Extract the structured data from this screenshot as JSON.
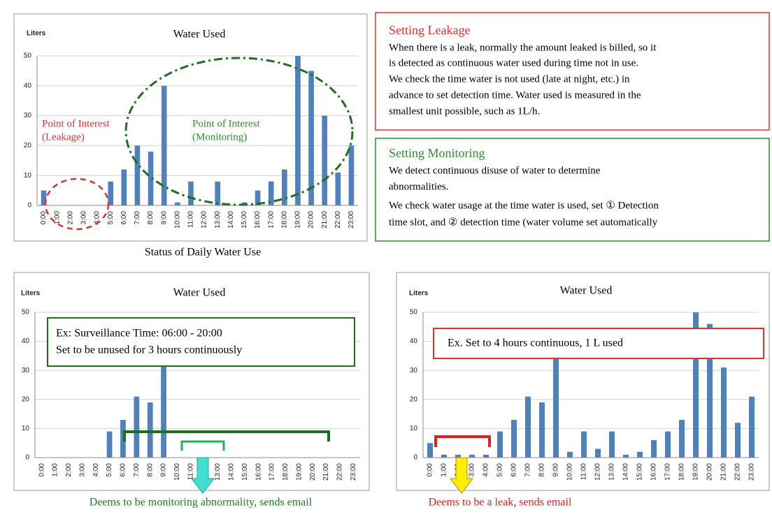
{
  "chart_data": [
    {
      "type": "bar",
      "title": "Water Used",
      "y_label": "Liters",
      "color": "#4f81bd",
      "categories": [
        "0:00",
        "1:00",
        "2:00",
        "3:00",
        "4:00",
        "5:00",
        "6:00",
        "7:00",
        "8:00",
        "9:00",
        "10:00",
        "11:00",
        "12:00",
        "13:00",
        "14:00",
        "15:00",
        "16:00",
        "17:00",
        "18:00",
        "19:00",
        "20:00",
        "21:00",
        "22:00",
        "23:00"
      ],
      "values": [
        5,
        0,
        0,
        0,
        0,
        8,
        12,
        20,
        18,
        40,
        1,
        8,
        0,
        8,
        0,
        1,
        5,
        8,
        12,
        50,
        45,
        30,
        11,
        20
      ],
      "ylim": [
        0,
        50
      ],
      "yticks": [
        0,
        10,
        20,
        30,
        40,
        50
      ],
      "grid": true,
      "annotations": [
        {
          "lines": [
            "Point of Interest",
            "(Leakage)"
          ],
          "color": "#e03030"
        },
        {
          "lines": [
            "Point of Interest",
            "(Monitoring)"
          ],
          "color": "#2e8b2e"
        }
      ],
      "caption": "Status of Daily Water Use"
    },
    {
      "type": "bar",
      "title": "Water Used",
      "y_label": "Liters",
      "color": "#4f81bd",
      "categories": [
        "0:00",
        "1:00",
        "2:00",
        "3:00",
        "4:00",
        "5:00",
        "6:00",
        "7:00",
        "8:00",
        "9:00",
        "10:00",
        "11:00",
        "12:00",
        "13:00",
        "14:00",
        "15:00",
        "16:00",
        "17:00",
        "18:00",
        "19:00",
        "20:00",
        "21:00",
        "22:00",
        "23:00"
      ],
      "values": [
        0,
        0,
        0,
        0,
        0,
        9,
        13,
        21,
        19,
        40,
        0,
        0,
        0,
        0,
        0,
        0,
        0,
        0,
        0,
        0,
        0,
        0,
        0,
        0
      ],
      "ylim": [
        0,
        50
      ],
      "yticks": [
        0,
        10,
        20,
        30,
        40,
        50
      ],
      "grid": true,
      "note_lines": [
        "Ex: Surveillance Time: 06:00 - 20:00",
        "Set to be unused for 3 hours continuously"
      ],
      "caption": "Deems to be monitoring abnormality, sends email"
    },
    {
      "type": "bar",
      "title": "Water Used",
      "y_label": "Liters",
      "color": "#4f81bd",
      "categories": [
        "0:00",
        "1:00",
        "2:00",
        "3:00",
        "4:00",
        "5:00",
        "6:00",
        "7:00",
        "8:00",
        "9:00",
        "10:00",
        "11:00",
        "12:00",
        "13:00",
        "14:00",
        "15:00",
        "16:00",
        "17:00",
        "18:00",
        "19:00",
        "20:00",
        "21:00",
        "22:00",
        "23:00"
      ],
      "values": [
        5,
        1,
        1,
        1,
        1,
        9,
        13,
        21,
        19,
        40,
        2,
        9,
        3,
        9,
        1,
        2,
        6,
        9,
        13,
        50,
        46,
        31,
        12,
        21
      ],
      "ylim": [
        0,
        50
      ],
      "yticks": [
        0,
        10,
        20,
        30,
        40,
        50
      ],
      "grid": true,
      "note_lines": [
        "Ex. Set to 4 hours continuous, 1 L used"
      ],
      "caption": "Deems to be a leak, sends email"
    }
  ],
  "panels": [
    {
      "heading": "Setting Leakage",
      "lines": [
        "When there is a leak, normally the amount leaked is billed, so it",
        "is detected as continuous water used during time not in use.",
        "We check the time water is not used (late at night, etc.) in",
        "advance  to set detection time. Water used is measured in the",
        "smallest unit possible, such as 1L/h."
      ]
    },
    {
      "heading": "Setting Monitoring",
      "lines": [
        "We detect continuous disuse of water to determine",
        "abnormalities.",
        "We check water usage at the time water is used, set ① Detection",
        "time slot, and ② detection time (water volume set automatically"
      ]
    }
  ]
}
